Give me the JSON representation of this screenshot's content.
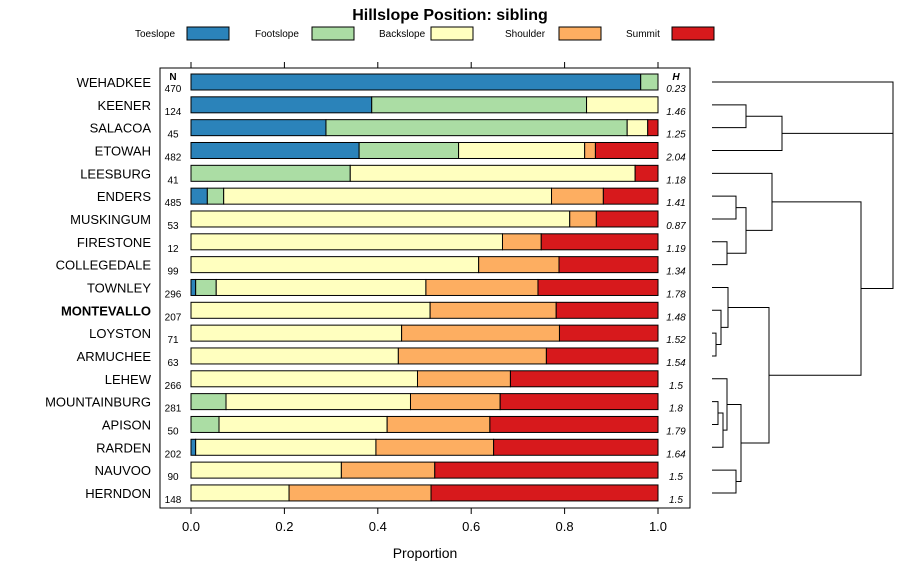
{
  "chart_data": {
    "type": "bar",
    "stacked": true,
    "orientation": "horizontal",
    "title": "Hillslope Position: sibling",
    "xlabel": "Proportion",
    "ylabel": "",
    "xlim": [
      0,
      1
    ],
    "xticks": [
      "0.0",
      "0.2",
      "0.4",
      "0.6",
      "0.8",
      "1.0"
    ],
    "tick_values": [
      0,
      0.2,
      0.4,
      0.6,
      0.8,
      1.0
    ],
    "n_header": "N",
    "h_header": "H",
    "legend_position": "top",
    "highlight": "MONTEVALLO",
    "series": [
      {
        "name": "Toeslope",
        "color": "#2b83ba"
      },
      {
        "name": "Footslope",
        "color": "#abdda4"
      },
      {
        "name": "Backslope",
        "color": "#ffffbf"
      },
      {
        "name": "Shoulder",
        "color": "#fdae61"
      },
      {
        "name": "Summit",
        "color": "#d7191c"
      }
    ],
    "rows": [
      {
        "name": "WEHADKEE",
        "n": "470",
        "h": "0.23",
        "values": [
          0.963,
          0.037,
          0,
          0,
          0
        ]
      },
      {
        "name": "KEENER",
        "n": "124",
        "h": "1.46",
        "values": [
          0.387,
          0.46,
          0.153,
          0,
          0
        ]
      },
      {
        "name": "SALACOA",
        "n": "45",
        "h": "1.25",
        "values": [
          0.289,
          0.645,
          0.044,
          0,
          0.022
        ]
      },
      {
        "name": "ETOWAH",
        "n": "482",
        "h": "2.04",
        "values": [
          0.36,
          0.213,
          0.27,
          0.023,
          0.134
        ]
      },
      {
        "name": "LEESBURG",
        "n": "41",
        "h": "1.18",
        "values": [
          0,
          0.341,
          0.61,
          0,
          0.049
        ]
      },
      {
        "name": "ENDERS",
        "n": "485",
        "h": "1.41",
        "values": [
          0.035,
          0.035,
          0.702,
          0.111,
          0.117
        ]
      },
      {
        "name": "MUSKINGUM",
        "n": "53",
        "h": "0.87",
        "values": [
          0,
          0,
          0.811,
          0.057,
          0.132
        ]
      },
      {
        "name": "FIRESTONE",
        "n": "12",
        "h": "1.19",
        "values": [
          0,
          0,
          0.667,
          0.083,
          0.25
        ]
      },
      {
        "name": "COLLEGEDALE",
        "n": "99",
        "h": "1.34",
        "values": [
          0,
          0,
          0.616,
          0.172,
          0.212
        ]
      },
      {
        "name": "TOWNLEY",
        "n": "296",
        "h": "1.78",
        "values": [
          0.01,
          0.044,
          0.449,
          0.24,
          0.257
        ]
      },
      {
        "name": "MONTEVALLO",
        "n": "207",
        "h": "1.48",
        "values": [
          0,
          0,
          0.512,
          0.27,
          0.218
        ]
      },
      {
        "name": "LOYSTON",
        "n": "71",
        "h": "1.52",
        "values": [
          0,
          0,
          0.451,
          0.338,
          0.211
        ]
      },
      {
        "name": "ARMUCHEE",
        "n": "63",
        "h": "1.54",
        "values": [
          0,
          0,
          0.444,
          0.317,
          0.239
        ]
      },
      {
        "name": "LEHEW",
        "n": "266",
        "h": "1.5",
        "values": [
          0,
          0,
          0.485,
          0.199,
          0.316
        ]
      },
      {
        "name": "MOUNTAINBURG",
        "n": "281",
        "h": "1.8",
        "values": [
          0,
          0.075,
          0.395,
          0.192,
          0.338
        ]
      },
      {
        "name": "APISON",
        "n": "50",
        "h": "1.79",
        "values": [
          0,
          0.06,
          0.36,
          0.22,
          0.36
        ]
      },
      {
        "name": "RARDEN",
        "n": "202",
        "h": "1.64",
        "values": [
          0.01,
          0,
          0.386,
          0.252,
          0.352
        ]
      },
      {
        "name": "NAUVOO",
        "n": "90",
        "h": "1.5",
        "values": [
          0,
          0,
          0.322,
          0.2,
          0.478
        ]
      },
      {
        "name": "HERNDON",
        "n": "148",
        "h": "1.5",
        "values": [
          0,
          0,
          0.21,
          0.304,
          0.486
        ]
      }
    ]
  }
}
